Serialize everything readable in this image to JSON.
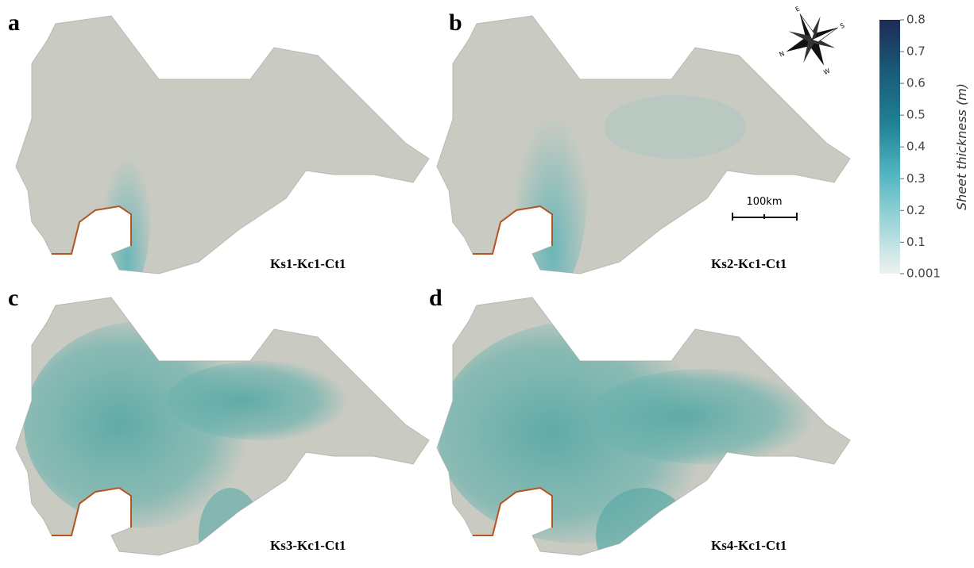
{
  "panels": [
    {
      "label": "a",
      "caption": "Ks1-Kc1-Ct1"
    },
    {
      "label": "b",
      "caption": "Ks2-Kc1-Ct1"
    },
    {
      "label": "c",
      "caption": "Ks3-Kc1-Ct1"
    },
    {
      "label": "d",
      "caption": "Ks4-Kc1-Ct1"
    }
  ],
  "compass": [
    "E",
    "S",
    "W",
    "N"
  ],
  "scale_bar": "100km",
  "colorbar": {
    "title": "Sheet thickness (m)",
    "lim": [
      0.001,
      0.8
    ],
    "ticks": [
      0.8,
      0.7,
      0.6,
      0.5,
      0.4,
      0.3,
      0.2,
      0.1,
      0.001
    ],
    "colors": [
      "#eef2f1",
      "#9fd6da",
      "#4fb3bf",
      "#1f7f93",
      "#1a5a78",
      "#1c2b55"
    ]
  }
}
